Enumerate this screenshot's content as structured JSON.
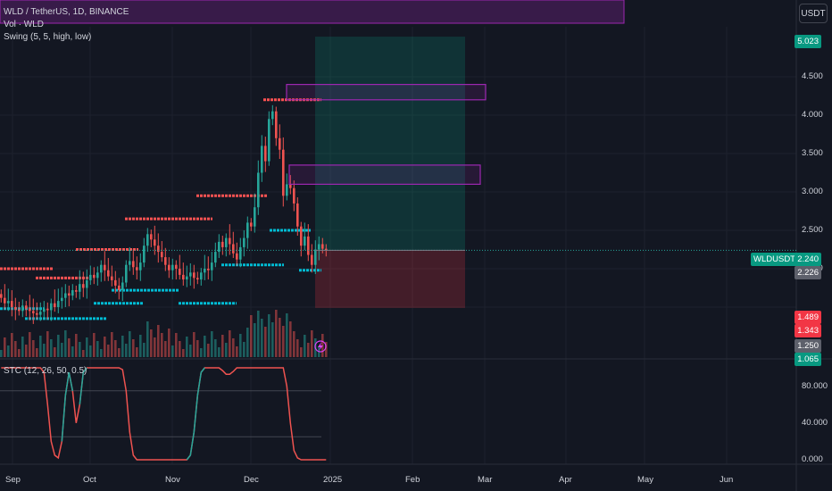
{
  "header": {
    "symbol_line": "WLD / TetherUS, 1D, BINANCE",
    "vol_line": "Vol · WLD",
    "swing_line": "Swing (5, 5, high, low)",
    "stc_line": "STC (12, 26, 50, 0.5)",
    "currency_button": "USDT"
  },
  "price_axis": {
    "ticks": [
      "4.500",
      "4.000",
      "3.500",
      "3.000",
      "2.500",
      "2.000"
    ],
    "badges": [
      {
        "text": "5.023",
        "color": "#089981"
      },
      {
        "text": "2.240",
        "color": "#089981",
        "prefix": "WLDUSDT"
      },
      {
        "text": "2.226",
        "color": "#5d606b"
      },
      {
        "text": "1.489",
        "color": "#f23645"
      },
      {
        "text": "1.343",
        "color": "#f23645"
      },
      {
        "text": "1.250",
        "color": "#5d606b"
      },
      {
        "text": "1.065",
        "color": "#089981"
      }
    ]
  },
  "stc_axis": {
    "ticks": [
      "80.000",
      "40.000",
      "0.000"
    ]
  },
  "time_axis": {
    "ticks": [
      "Sep",
      "Oct",
      "Nov",
      "Dec",
      "2025",
      "Feb",
      "Mar",
      "Apr",
      "May",
      "Jun"
    ]
  },
  "colors": {
    "up": "#26a69a",
    "down": "#ef5350",
    "swing_high": "#ff5252",
    "swing_low": "#00bcd4",
    "zone": "#9c27b0",
    "stc": "#ef5350"
  },
  "chart_data": {
    "type": "candlestick",
    "symbol": "WLD / TetherUS",
    "interval": "1D",
    "exchange": "BINANCE",
    "last_price": 2.24,
    "ylim": [
      1.1,
      5.1
    ],
    "candles_close": [
      1.62,
      1.55,
      1.58,
      1.5,
      1.47,
      1.45,
      1.52,
      1.48,
      1.45,
      1.42,
      1.4,
      1.44,
      1.48,
      1.46,
      1.55,
      1.5,
      1.58,
      1.62,
      1.68,
      1.65,
      1.72,
      1.7,
      1.8,
      1.75,
      1.85,
      1.92,
      1.88,
      1.95,
      2.05,
      1.98,
      1.9,
      1.85,
      1.78,
      1.72,
      1.82,
      2.05,
      2.1,
      2.02,
      1.98,
      2.08,
      2.3,
      2.45,
      2.38,
      2.3,
      2.22,
      2.15,
      2.05,
      1.98,
      2.05,
      2.0,
      1.92,
      1.86,
      1.9,
      1.95,
      1.88,
      1.86,
      1.95,
      2.0,
      1.98,
      2.08,
      2.22,
      2.35,
      2.28,
      2.4,
      2.32,
      2.2,
      2.12,
      2.28,
      2.4,
      2.6,
      2.55,
      2.8,
      3.25,
      3.6,
      3.4,
      3.95,
      4.05,
      3.7,
      3.55,
      2.95,
      3.1,
      3.05,
      2.85,
      2.55,
      2.3,
      2.42,
      2.18,
      2.05,
      2.25,
      2.32,
      2.26,
      2.24
    ],
    "swing_highs": [
      {
        "price": 2.0,
        "from": "Aug",
        "to": "Sep"
      },
      {
        "price": 1.88,
        "from": "Sep",
        "to": "Oct"
      },
      {
        "price": 2.25,
        "from": "Oct",
        "to": "Oct"
      },
      {
        "price": 2.65,
        "from": "Oct",
        "to": "Nov"
      },
      {
        "price": 2.95,
        "from": "Nov",
        "to": "Dec"
      },
      {
        "price": 4.2,
        "from": "Dec",
        "to": "Dec"
      }
    ],
    "swing_lows": [
      {
        "price": 1.48,
        "from": "Aug",
        "to": "Sep"
      },
      {
        "price": 1.35,
        "from": "Sep",
        "to": "Oct"
      },
      {
        "price": 1.55,
        "from": "Oct",
        "to": "Oct"
      },
      {
        "price": 1.72,
        "from": "Oct",
        "to": "Nov"
      },
      {
        "price": 1.55,
        "from": "Nov",
        "to": "Dec"
      },
      {
        "price": 2.05,
        "from": "Nov",
        "to": "Dec"
      },
      {
        "price": 2.5,
        "from": "Dec",
        "to": "Dec"
      },
      {
        "price": 1.98,
        "from": "Dec",
        "to": "Dec"
      }
    ],
    "zones": [
      {
        "top": 4.4,
        "bottom": 4.2
      },
      {
        "top": 3.35,
        "bottom": 3.1
      }
    ],
    "position": {
      "target": 5.023,
      "entry": 2.24,
      "stop": 1.489
    },
    "stc_values": [
      100,
      100,
      100,
      100,
      100,
      100,
      100,
      100,
      100,
      100,
      100,
      100,
      95,
      60,
      20,
      5,
      2,
      20,
      70,
      95,
      75,
      40,
      60,
      95,
      100,
      100,
      100,
      100,
      100,
      100,
      100,
      100,
      100,
      100,
      98,
      75,
      30,
      5,
      0,
      0,
      0,
      0,
      0,
      0,
      0,
      0,
      0,
      0,
      0,
      0,
      0,
      0,
      0,
      5,
      30,
      70,
      95,
      100,
      100,
      100,
      100,
      100,
      97,
      93,
      93,
      96,
      100,
      100,
      100,
      100,
      100,
      100,
      100,
      100,
      100,
      100,
      100,
      100,
      100,
      100,
      80,
      40,
      10,
      2,
      0,
      0,
      0,
      0,
      0,
      0,
      0,
      0
    ],
    "stc_ylim": [
      0,
      100
    ]
  }
}
